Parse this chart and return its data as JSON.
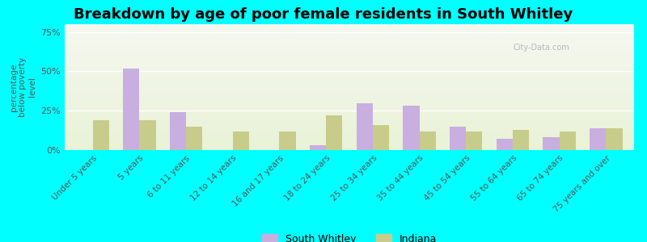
{
  "title": "Breakdown by age of poor female residents in South Whitley",
  "ylabel": "percentage\nbelow poverty\nlevel",
  "categories": [
    "Under 5 years",
    "5 years",
    "6 to 11 years",
    "12 to 14 years",
    "16 and 17 years",
    "18 to 24 years",
    "25 to 34 years",
    "35 to 44 years",
    "45 to 54 years",
    "55 to 64 years",
    "65 to 74 years",
    "75 years and over"
  ],
  "south_whitley": [
    0,
    52,
    24,
    0,
    0,
    3,
    30,
    28,
    15,
    7,
    8,
    14
  ],
  "indiana": [
    19,
    19,
    15,
    12,
    12,
    22,
    16,
    12,
    12,
    13,
    12,
    14
  ],
  "sw_color": "#c9aee0",
  "in_color": "#c8cc8a",
  "bg_top_color": "#f5f5e8",
  "bg_bottom_color": "#e8f0d8",
  "ylim": [
    0,
    80
  ],
  "ytick_vals": [
    0,
    25,
    50,
    75
  ],
  "ytick_labels": [
    "0%",
    "25%",
    "50%",
    "75%"
  ],
  "background_outer": "#00ffff",
  "title_fontsize": 13,
  "label_fontsize": 8,
  "legend_sw": "South Whitley",
  "legend_in": "Indiana",
  "bar_width": 0.35
}
